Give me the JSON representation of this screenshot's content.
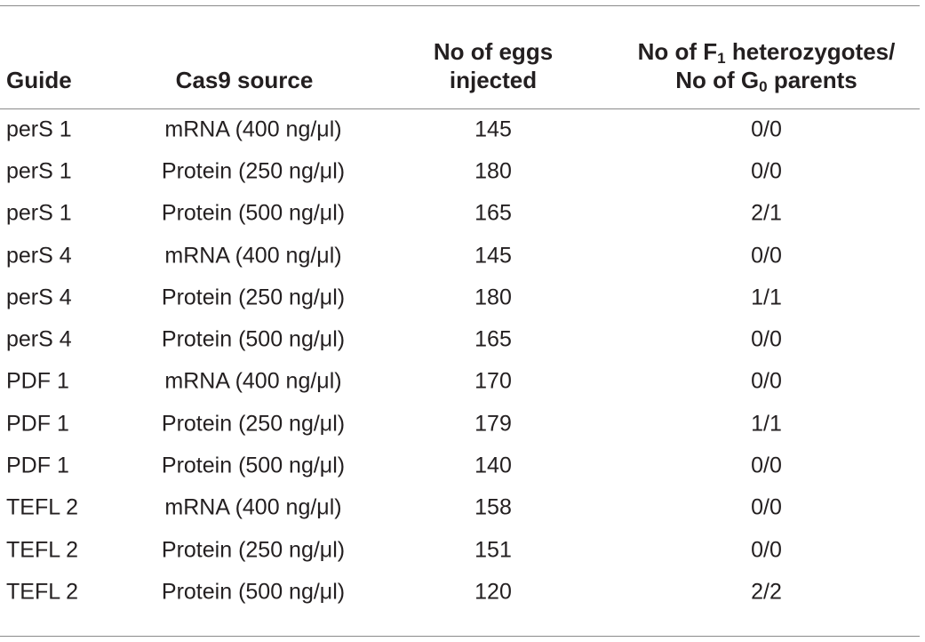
{
  "table": {
    "headers": {
      "guide": "Guide",
      "cas9_source": "Cas9 source",
      "eggs_line1": "No of eggs",
      "eggs_line2": "injected",
      "f1_line1_prefix": "No of F",
      "f1_line1_sub": "1",
      "f1_line1_suffix": " heterozygotes/",
      "f1_line2_prefix": "No of G",
      "f1_line2_sub": "0",
      "f1_line2_suffix": " parents"
    },
    "rows": [
      {
        "guide": "perS 1",
        "cas9_source": "mRNA (400 ng/μl)",
        "eggs": "145",
        "ratio": "0/0"
      },
      {
        "guide": "perS 1",
        "cas9_source": "Protein (250 ng/μl)",
        "eggs": "180",
        "ratio": "0/0"
      },
      {
        "guide": "perS 1",
        "cas9_source": "Protein (500 ng/μl)",
        "eggs": "165",
        "ratio": "2/1"
      },
      {
        "guide": "perS 4",
        "cas9_source": "mRNA (400 ng/μl)",
        "eggs": "145",
        "ratio": "0/0"
      },
      {
        "guide": "perS 4",
        "cas9_source": "Protein (250 ng/μl)",
        "eggs": "180",
        "ratio": "1/1"
      },
      {
        "guide": "perS 4",
        "cas9_source": "Protein (500 ng/μl)",
        "eggs": "165",
        "ratio": "0/0"
      },
      {
        "guide": "PDF 1",
        "cas9_source": "mRNA (400 ng/μl)",
        "eggs": "170",
        "ratio": "0/0"
      },
      {
        "guide": "PDF 1",
        "cas9_source": "Protein (250 ng/μl)",
        "eggs": "179",
        "ratio": "1/1"
      },
      {
        "guide": "PDF 1",
        "cas9_source": "Protein (500 ng/μl)",
        "eggs": "140",
        "ratio": "0/0"
      },
      {
        "guide": "TEFL 2",
        "cas9_source": "mRNA (400 ng/μl)",
        "eggs": "158",
        "ratio": "0/0"
      },
      {
        "guide": "TEFL 2",
        "cas9_source": "Protein (250 ng/μl)",
        "eggs": "151",
        "ratio": "0/0"
      },
      {
        "guide": "TEFL 2",
        "cas9_source": "Protein (500 ng/μl)",
        "eggs": "120",
        "ratio": "2/2"
      }
    ]
  }
}
